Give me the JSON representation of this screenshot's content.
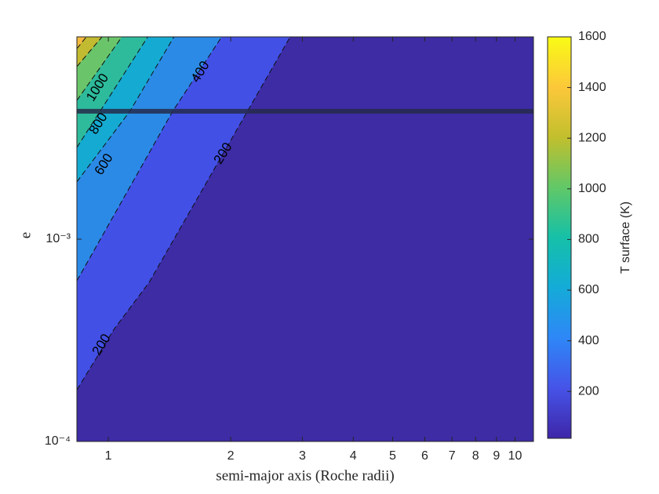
{
  "chart_data": {
    "type": "contour",
    "xlabel": "semi-major axis (Roche radii)",
    "ylabel": "e",
    "xscale": "log",
    "yscale": "log",
    "xlim": [
      0.837,
      11.1
    ],
    "ylim": [
      0.0001,
      0.01
    ],
    "xticks": [
      1,
      2,
      3,
      4,
      5,
      6,
      7,
      8,
      9,
      10
    ],
    "yticks": [
      {
        "value": 0.0001,
        "label": "10⁻⁴"
      },
      {
        "value": 0.001,
        "label": "10⁻³"
      }
    ],
    "base_color": "#3d2ca4",
    "levels": [
      {
        "value": 200,
        "color": "#4250e6",
        "line": {
          "x": [
            0.837,
            1.032,
            1.26,
            2.8
          ],
          "y": [
            0.00018,
            0.000358,
            0.000612,
            0.01
          ]
        }
      },
      {
        "value": 400,
        "color": "#2b8ae6",
        "line": {
          "x": [
            0.837,
            1.44,
            1.9
          ],
          "y": [
            0.000623,
            0.00429,
            0.01
          ]
        }
      },
      {
        "value": 600,
        "color": "#14aad2",
        "line": {
          "x": [
            0.837,
            1.13,
            1.45
          ],
          "y": [
            0.00192,
            0.00429,
            0.01
          ]
        }
      },
      {
        "value": 800,
        "color": "#2dbb9c",
        "line": {
          "x": [
            0.837,
            1.25
          ],
          "y": [
            0.00284,
            0.01
          ]
        }
      },
      {
        "value": 1000,
        "color": "#6ac56a",
        "line": {
          "x": [
            0.837,
            1.08
          ],
          "y": [
            0.00485,
            0.01
          ]
        }
      },
      {
        "value": 1200,
        "color": "#c2ba30",
        "line": {
          "x": [
            0.837,
            0.965
          ],
          "y": [
            0.00713,
            0.01
          ]
        }
      },
      {
        "value": 1400,
        "color": "#f4b93f",
        "line": {
          "x": [
            0.837,
            0.883
          ],
          "y": [
            0.00875,
            0.01
          ]
        }
      }
    ],
    "hline": {
      "value": 0.00429,
      "color": "#262a4a"
    },
    "colorbar": {
      "label": "T surface (K)",
      "clim": [
        15,
        1600
      ],
      "ticks": [
        200,
        400,
        600,
        800,
        1000,
        1200,
        1400,
        1600
      ],
      "colormap": [
        "#3e26a8",
        "#4653e8",
        "#2e87f7",
        "#14abd8",
        "#15c0a8",
        "#61c867",
        "#c2bf2d",
        "#fcc83a",
        "#f9fb15"
      ]
    }
  }
}
